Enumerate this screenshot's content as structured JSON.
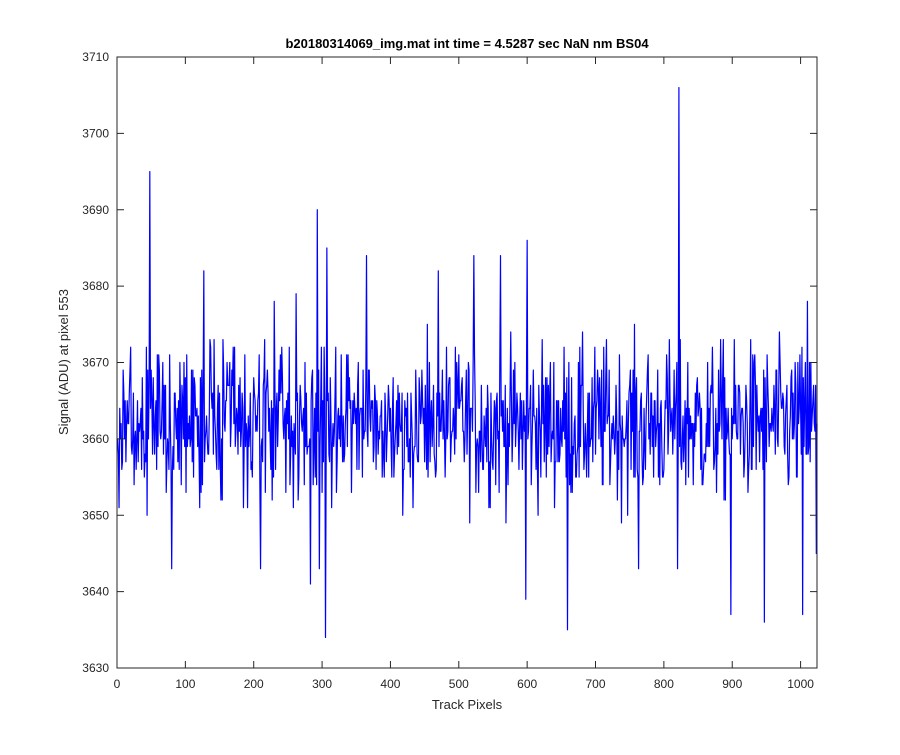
{
  "chart_data": {
    "type": "line",
    "title": "b20180314069_img.mat int time = 4.5287 sec  NaN nm BS04",
    "xlabel": "Track Pixels",
    "ylabel": "Signal (ADU) at pixel 553",
    "xlim": [
      0,
      1024
    ],
    "ylim": [
      3630,
      3710
    ],
    "xticks": [
      0,
      100,
      200,
      300,
      400,
      500,
      600,
      700,
      800,
      900,
      1000
    ],
    "yticks": [
      3630,
      3640,
      3650,
      3660,
      3670,
      3680,
      3690,
      3700,
      3710
    ],
    "grid": false,
    "legend": "none",
    "series_color": "#0000ff",
    "baseline": 3662,
    "noise_halfwidth": 11,
    "n_points": 1024,
    "series": [
      {
        "x_start": 1,
        "x_step": 1,
        "spikes": [
          {
            "x": 48,
            "y": 3695
          },
          {
            "x": 80,
            "y": 3643
          },
          {
            "x": 127,
            "y": 3682
          },
          {
            "x": 210,
            "y": 3643
          },
          {
            "x": 230,
            "y": 3678
          },
          {
            "x": 262,
            "y": 3679
          },
          {
            "x": 283,
            "y": 3641
          },
          {
            "x": 293,
            "y": 3690
          },
          {
            "x": 296,
            "y": 3643
          },
          {
            "x": 305,
            "y": 3634
          },
          {
            "x": 307,
            "y": 3685
          },
          {
            "x": 365,
            "y": 3684
          },
          {
            "x": 470,
            "y": 3682
          },
          {
            "x": 522,
            "y": 3684
          },
          {
            "x": 561,
            "y": 3684
          },
          {
            "x": 598,
            "y": 3639
          },
          {
            "x": 600,
            "y": 3686
          },
          {
            "x": 659,
            "y": 3635
          },
          {
            "x": 763,
            "y": 3643
          },
          {
            "x": 822,
            "y": 3706
          },
          {
            "x": 820,
            "y": 3643
          },
          {
            "x": 898,
            "y": 3637
          },
          {
            "x": 947,
            "y": 3636
          },
          {
            "x": 1003,
            "y": 3637
          },
          {
            "x": 1010,
            "y": 3678
          },
          {
            "x": 1023,
            "y": 3645
          }
        ]
      }
    ]
  }
}
